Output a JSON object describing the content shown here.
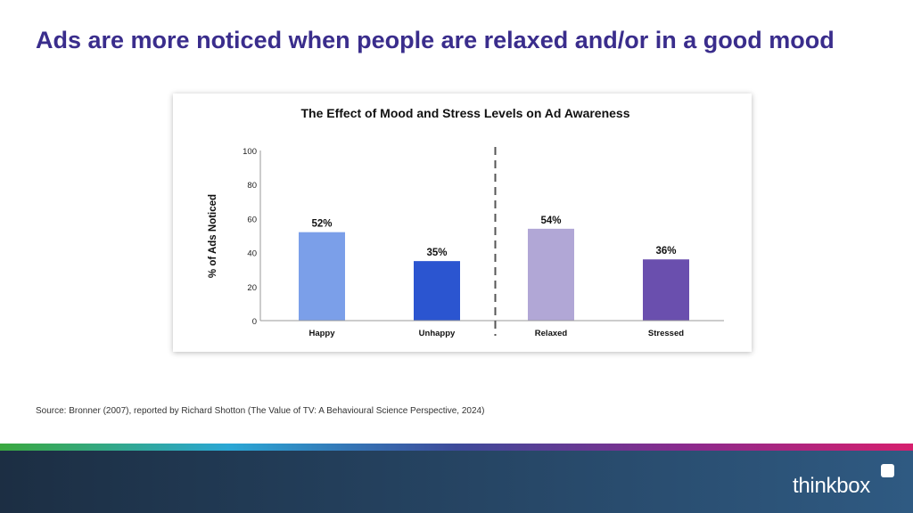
{
  "slide": {
    "title": "Ads are more noticed when people are relaxed and/or in a good mood",
    "source": "Source: Bronner (2007), reported by Richard Shotton (The Value of TV: A Behavioural Science Perspective, 2024)"
  },
  "brand": {
    "logo_text": "thinkbox",
    "gradient_colors": [
      "#3aa83f",
      "#2aa7d5",
      "#3d4a9a",
      "#8a2a8d",
      "#d61f6e"
    ],
    "footer_colors": [
      "#1c2e43",
      "#2f5a82"
    ],
    "title_color": "#3a2d8c"
  },
  "chart_data": {
    "type": "bar",
    "title": "The Effect of Mood and Stress Levels on Ad Awareness",
    "ylabel": "% of Ads Noticed",
    "xlabel": "",
    "ylim": [
      0,
      100
    ],
    "yticks": [
      "0",
      "20",
      "40",
      "60",
      "80",
      "100"
    ],
    "grid": false,
    "categories": [
      "Happy",
      "Unhappy",
      "Relaxed",
      "Stressed"
    ],
    "values": [
      52,
      35,
      54,
      36
    ],
    "data_labels": [
      "52%",
      "35%",
      "54%",
      "36%"
    ],
    "colors": [
      "#7b9fe9",
      "#2b55d0",
      "#b1a7d6",
      "#6a4fae"
    ],
    "divider": "dashed line between Unhappy and Relaxed"
  }
}
